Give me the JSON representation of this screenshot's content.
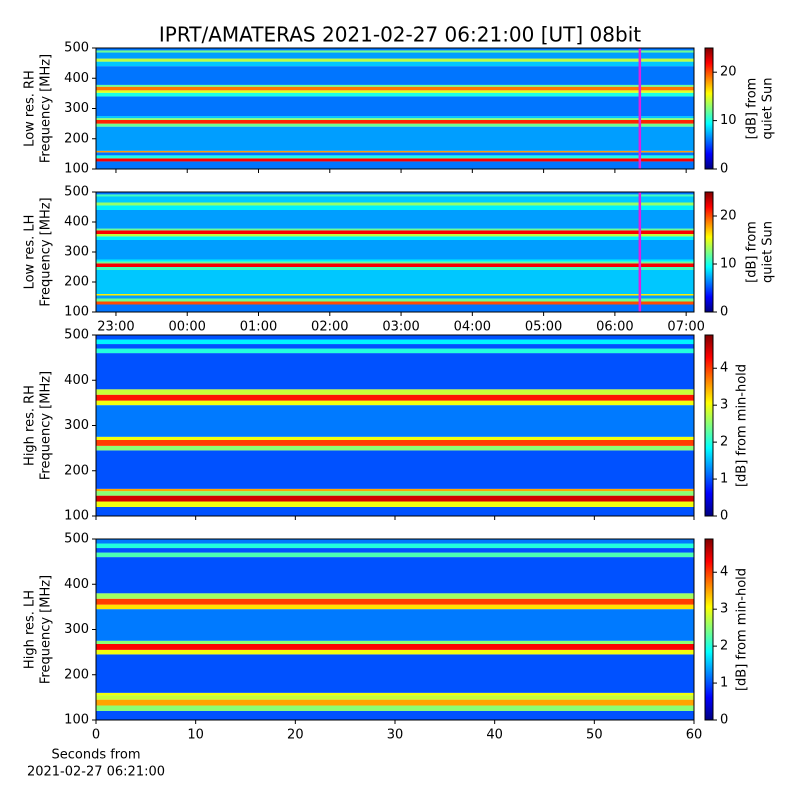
{
  "title": "IPRT/AMATERAS 2021-02-27 06:21:00 [UT]   08bit",
  "chart_data": [
    {
      "type": "heatmap",
      "ylabel": [
        "Low res. RH",
        "Frequency [MHz]"
      ],
      "xlim": [
        22.72,
        31.11
      ],
      "xticks": [
        {
          "value": 23,
          "label": "23:00"
        },
        {
          "value": 24,
          "label": "00:00"
        },
        {
          "value": 25,
          "label": "01:00"
        },
        {
          "value": 26,
          "label": "02:00"
        },
        {
          "value": 27,
          "label": "03:00"
        },
        {
          "value": 28,
          "label": "04:00"
        },
        {
          "value": 29,
          "label": "05:00"
        },
        {
          "value": 30,
          "label": "06:00"
        },
        {
          "value": 31,
          "label": "07:00"
        }
      ],
      "show_xticklabels": false,
      "ylim": [
        100,
        500
      ],
      "yticks": [
        100,
        200,
        300,
        400,
        500
      ],
      "clim": [
        0,
        25
      ],
      "cticks": [
        0,
        10,
        20
      ],
      "colorbar_label": [
        "[dB] from",
        "quiet Sun"
      ],
      "marker_x": 30.35,
      "marker_color": "#e020e0",
      "y_edges": [
        100,
        125,
        135,
        145,
        155,
        160,
        240,
        250,
        262,
        268,
        275,
        340,
        352,
        360,
        372,
        378,
        440,
        455,
        465,
        485,
        492,
        500
      ],
      "values": [
        6,
        22,
        10,
        6,
        18,
        7,
        12,
        21,
        13,
        8,
        6,
        10,
        15,
        19,
        12,
        6,
        8,
        14,
        7,
        12,
        6
      ]
    },
    {
      "type": "heatmap",
      "ylabel": [
        "Low res. LH",
        "Frequency [MHz]"
      ],
      "xlim": [
        22.72,
        31.11
      ],
      "xticks": [
        {
          "value": 23,
          "label": "23:00"
        },
        {
          "value": 24,
          "label": "00:00"
        },
        {
          "value": 25,
          "label": "01:00"
        },
        {
          "value": 26,
          "label": "02:00"
        },
        {
          "value": 27,
          "label": "03:00"
        },
        {
          "value": 28,
          "label": "04:00"
        },
        {
          "value": 29,
          "label": "05:00"
        },
        {
          "value": 30,
          "label": "06:00"
        },
        {
          "value": 31,
          "label": "07:00"
        }
      ],
      "show_xticklabels": true,
      "ylim": [
        100,
        500
      ],
      "yticks": [
        100,
        200,
        300,
        400,
        500
      ],
      "clim": [
        0,
        25
      ],
      "cticks": [
        0,
        10,
        20
      ],
      "colorbar_label": [
        "[dB] from",
        "quiet Sun"
      ],
      "marker_x": 30.35,
      "marker_color": "#e020e0",
      "y_edges": [
        100,
        125,
        135,
        145,
        155,
        160,
        240,
        250,
        262,
        268,
        275,
        340,
        352,
        360,
        372,
        378,
        440,
        455,
        465,
        485,
        492,
        500
      ],
      "values": [
        6,
        20,
        12,
        7,
        16,
        8,
        11,
        22,
        12,
        9,
        7,
        9,
        14,
        22,
        12,
        7,
        9,
        13,
        8,
        11,
        6
      ]
    },
    {
      "type": "heatmap",
      "ylabel": [
        "High res. RH",
        "Frequency [MHz]"
      ],
      "xlim": [
        0,
        60
      ],
      "xticks": [
        0,
        10,
        20,
        30,
        40,
        50,
        60
      ],
      "show_xticklabels": false,
      "ylim": [
        100,
        500
      ],
      "yticks": [
        100,
        200,
        300,
        400,
        500
      ],
      "clim": [
        0,
        4.9
      ],
      "cticks": [
        0,
        1,
        2,
        3,
        4
      ],
      "colorbar_label": [
        "[dB] from min-hold"
      ],
      "y_edges": [
        100,
        120,
        132,
        145,
        155,
        160,
        245,
        255,
        268,
        275,
        345,
        355,
        368,
        380,
        460,
        470,
        480,
        490,
        500
      ],
      "values": [
        1,
        3,
        4.5,
        2.5,
        3.5,
        1,
        2.5,
        4,
        3,
        1.2,
        3,
        4.2,
        2.8,
        1,
        2,
        1,
        1.8,
        1
      ]
    },
    {
      "type": "heatmap",
      "ylabel": [
        "High res. LH",
        "Frequency [MHz]"
      ],
      "xlim": [
        0,
        60
      ],
      "xticks": [
        0,
        10,
        20,
        30,
        40,
        50,
        60
      ],
      "show_xticklabels": true,
      "xlabel": [
        "Seconds from",
        "2021-02-27 06:21:00"
      ],
      "ylim": [
        100,
        500
      ],
      "yticks": [
        100,
        200,
        300,
        400,
        500
      ],
      "clim": [
        0,
        4.9
      ],
      "cticks": [
        0,
        1,
        2,
        3,
        4
      ],
      "colorbar_label": [
        "[dB] from min-hold"
      ],
      "y_edges": [
        100,
        120,
        132,
        145,
        155,
        160,
        245,
        255,
        268,
        275,
        345,
        355,
        368,
        380,
        460,
        470,
        480,
        490,
        500
      ],
      "values": [
        1,
        2.5,
        3.5,
        2.8,
        3,
        1,
        3,
        4.3,
        2.5,
        1.2,
        3.2,
        4,
        2.6,
        1,
        2.2,
        1,
        2,
        1.2
      ]
    }
  ]
}
